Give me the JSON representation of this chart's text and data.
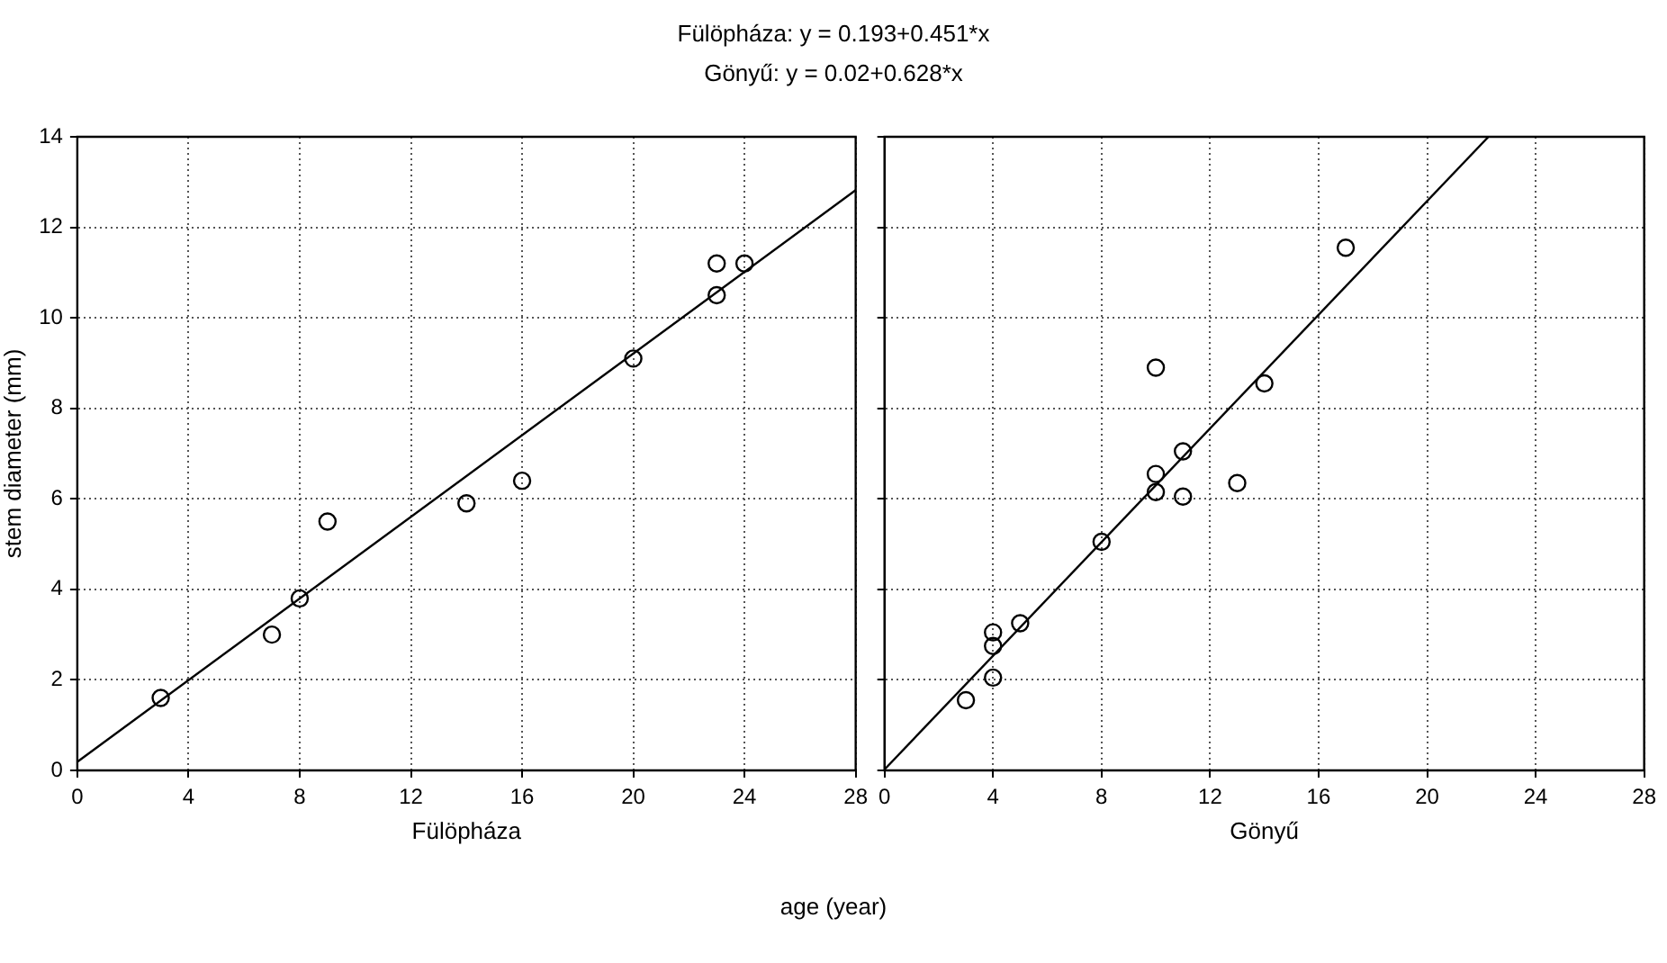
{
  "chart_data": [
    {
      "type": "scatter",
      "title": "Fülöpháza: y = 0.193+0.451*x",
      "xlabel": "Fülöpháza",
      "ylabel": "stem diameter (mm)",
      "annotations": [
        "age (year)"
      ],
      "xlim": [
        0,
        28
      ],
      "xticks": [
        0,
        4,
        8,
        12,
        16,
        20,
        24,
        28
      ],
      "ylim": [
        0,
        14
      ],
      "yticks": [
        0,
        2,
        4,
        6,
        8,
        10,
        12,
        14
      ],
      "grid": true,
      "legend": false,
      "series": [
        {
          "type": "scatter",
          "marker": "circle",
          "color": "#000000",
          "x": [
            3,
            7,
            8,
            9,
            14,
            16,
            20,
            23,
            23,
            24
          ],
          "values": [
            1.6,
            3.0,
            3.8,
            5.5,
            5.9,
            6.4,
            9.1,
            10.5,
            11.2,
            11.2
          ]
        },
        {
          "type": "line",
          "marker": "none",
          "line_style": "solid",
          "color": "#000000",
          "x": [
            0,
            28
          ],
          "values": [
            0.19,
            12.82
          ]
        }
      ]
    },
    {
      "type": "scatter",
      "title": "Gönyű: y = 0.02+0.628*x",
      "xlabel": "Gönyű",
      "xlim": [
        0,
        28
      ],
      "xticks": [
        0,
        4,
        8,
        12,
        16,
        20,
        24,
        28
      ],
      "ylim": [
        0,
        14
      ],
      "yticks": [
        0,
        2,
        4,
        6,
        8,
        10,
        12,
        14
      ],
      "grid": true,
      "legend": false,
      "tick_labels": "x",
      "series": [
        {
          "type": "scatter",
          "marker": "circle",
          "color": "#000000",
          "x": [
            3,
            4,
            4,
            4,
            5,
            8,
            10,
            10,
            10,
            11,
            11,
            13,
            14,
            17
          ],
          "values": [
            1.55,
            2.05,
            2.75,
            3.05,
            3.25,
            5.05,
            6.15,
            6.55,
            8.9,
            6.05,
            7.05,
            6.35,
            8.55,
            11.55
          ]
        },
        {
          "type": "line",
          "marker": "none",
          "line_style": "solid",
          "color": "#000000",
          "x": [
            0,
            22.26
          ],
          "values": [
            0.02,
            14.0
          ]
        }
      ]
    }
  ]
}
